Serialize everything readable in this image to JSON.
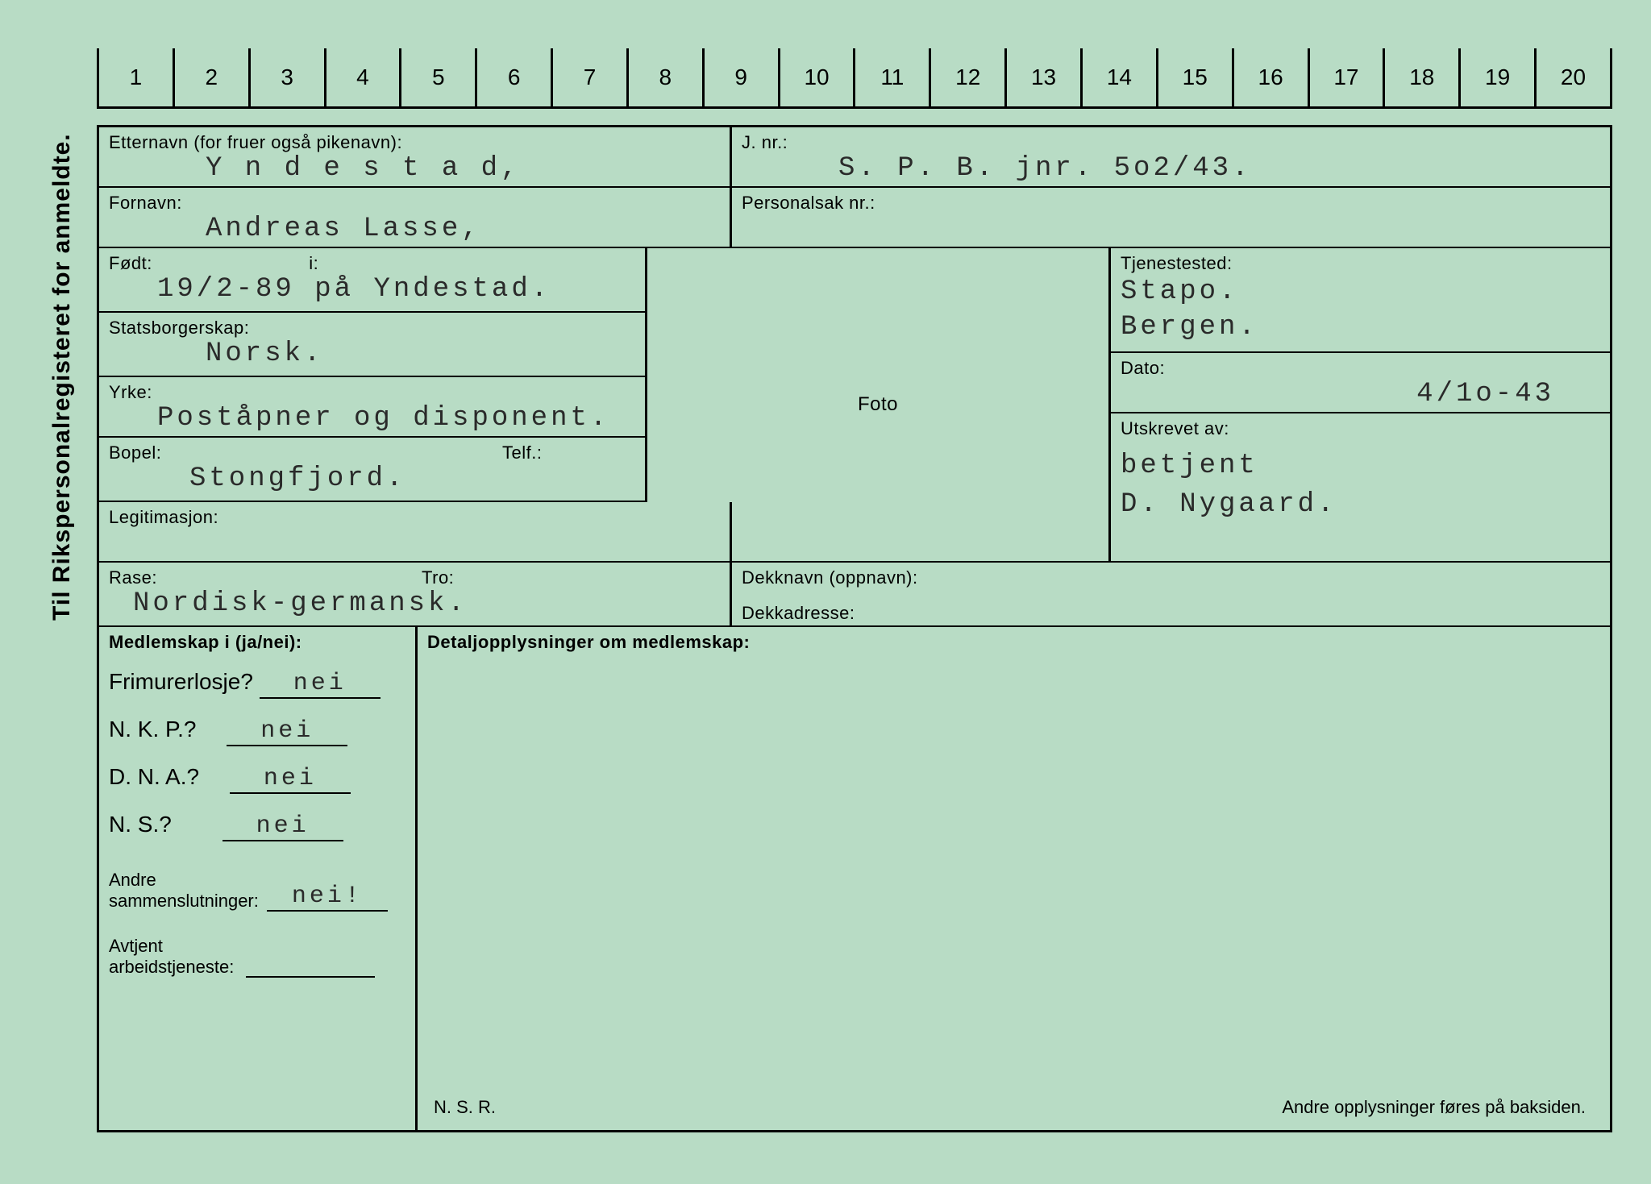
{
  "colors": {
    "background": "#b8dcc5",
    "line": "#000000",
    "typed_text": "#2a2a2a"
  },
  "typography": {
    "label_fontsize": 22,
    "value_fontsize": 34,
    "value_font": "Courier New",
    "value_letter_spacing": 4
  },
  "vertical_title": "Til Rikspersonalregisteret for anmeldte.",
  "ruler_numbers": [
    "1",
    "2",
    "3",
    "4",
    "5",
    "6",
    "7",
    "8",
    "9",
    "10",
    "11",
    "12",
    "13",
    "14",
    "15",
    "16",
    "17",
    "18",
    "19",
    "20"
  ],
  "labels": {
    "etternavn": "Etternavn (for fruer også pikenavn):",
    "fornavn": "Fornavn:",
    "fodt": "Født:",
    "fodt_i": "i:",
    "statsborgerskap": "Statsborgerskap:",
    "yrke": "Yrke:",
    "bopel": "Bopel:",
    "telf": "Telf.:",
    "legitimasjon": "Legitimasjon:",
    "rase": "Rase:",
    "tro": "Tro:",
    "jnr": "J. nr.:",
    "personalsak": "Personalsak nr.:",
    "foto": "Foto",
    "tjenestested": "Tjenestested:",
    "dato": "Dato:",
    "utskrevet": "Utskrevet av:",
    "dekknavn": "Dekknavn (oppnavn):",
    "dekkadresse": "Dekkadresse:",
    "medlemskap": "Medlemskap i (ja/nei):",
    "detalj": "Detaljopplysninger om medlemskap:",
    "frimurer": "Frimurerlosje?",
    "nkp": "N. K. P.?",
    "dna": "D. N. A.?",
    "ns": "N. S.?",
    "andre_samm": "Andre\nsammenslutninger:",
    "avtjent": "Avtjent\narbeidstjeneste:",
    "nsr": "N. S. R.",
    "baksiden": "Andre opplysninger føres på baksiden."
  },
  "data": {
    "etternavn": "Y n d e s t a d,",
    "fornavn": "Andreas Lasse,",
    "fodt": "19/2-89",
    "fodt_i": "på Yndestad.",
    "statsborgerskap": "Norsk.",
    "yrke": "Poståpner og disponent.",
    "bopel": "Stongfjord.",
    "telf": "",
    "legitimasjon": "",
    "rase": "Nordisk-germansk.",
    "tro": "",
    "jnr": "S. P. B. jnr. 5o2/43.",
    "personalsak": "",
    "tjenestested": "Stapo.\nBergen.",
    "dato": "4/1o-43",
    "utskrevet": "betjent\nD. Nygaard.",
    "dekknavn": "",
    "dekkadresse": "",
    "frimurer": "nei",
    "nkp": "nei",
    "dna": "nei",
    "ns": "nei",
    "andre_samm": "nei!",
    "avtjent": ""
  }
}
